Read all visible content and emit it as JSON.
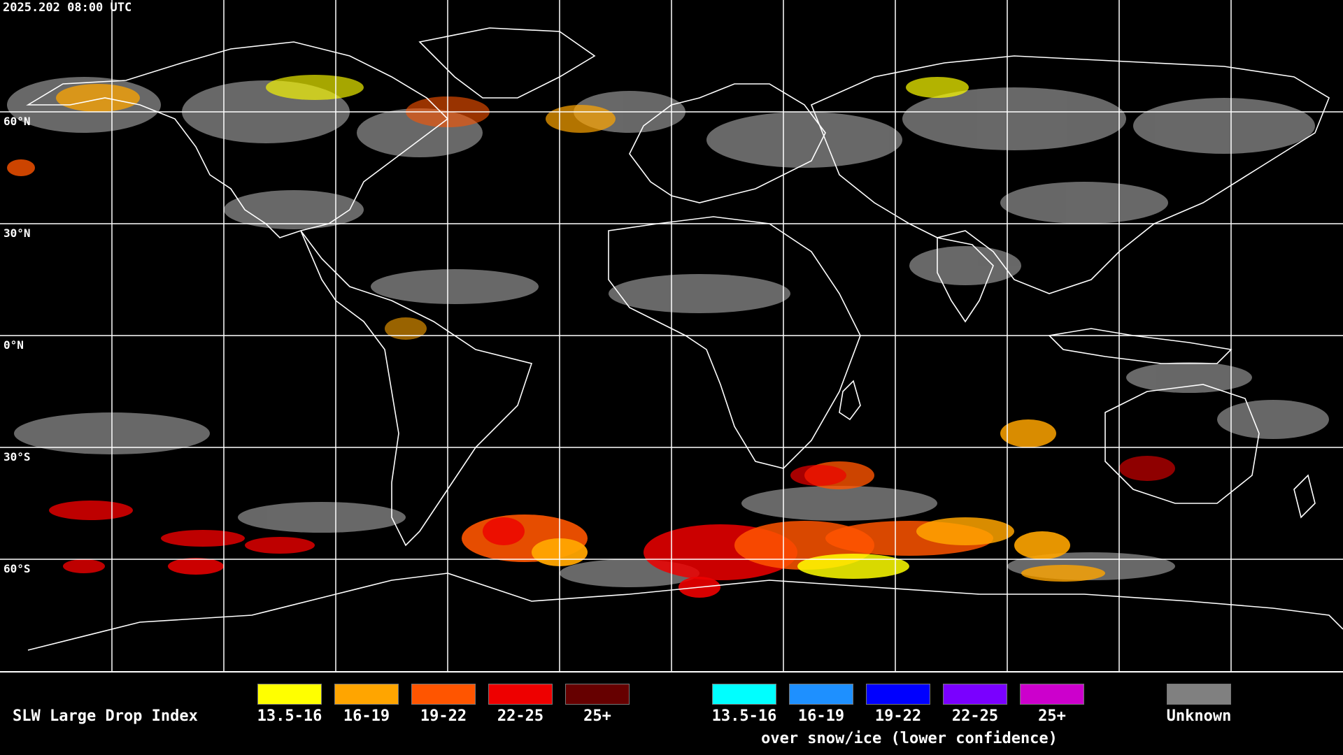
{
  "header": {
    "timestamp": "2025.202 08:00 UTC"
  },
  "map": {
    "latitude_labels": [
      "60°N",
      "30°N",
      "0°N",
      "30°S",
      "60°S"
    ],
    "grid_color": "#ffffff",
    "coastline_color": "#ffffff",
    "background_color": "#000000"
  },
  "legend": {
    "title": "SLW Large Drop Index",
    "standard": [
      {
        "label": "13.5-16",
        "color": "#ffff00"
      },
      {
        "label": "16-19",
        "color": "#ffa500"
      },
      {
        "label": "19-22",
        "color": "#ff5500"
      },
      {
        "label": "22-25",
        "color": "#ee0000"
      },
      {
        "label": "25+",
        "color": "#660000"
      }
    ],
    "snow_ice": [
      {
        "label": "13.5-16",
        "color": "#00ffff"
      },
      {
        "label": "16-19",
        "color": "#1e90ff"
      },
      {
        "label": "19-22",
        "color": "#0000ff"
      },
      {
        "label": "22-25",
        "color": "#7a00ff"
      },
      {
        "label": "25+",
        "color": "#cc00cc"
      }
    ],
    "snow_ice_caption": "over snow/ice (lower confidence)",
    "unknown": {
      "label": "Unknown",
      "color": "#808080"
    }
  }
}
